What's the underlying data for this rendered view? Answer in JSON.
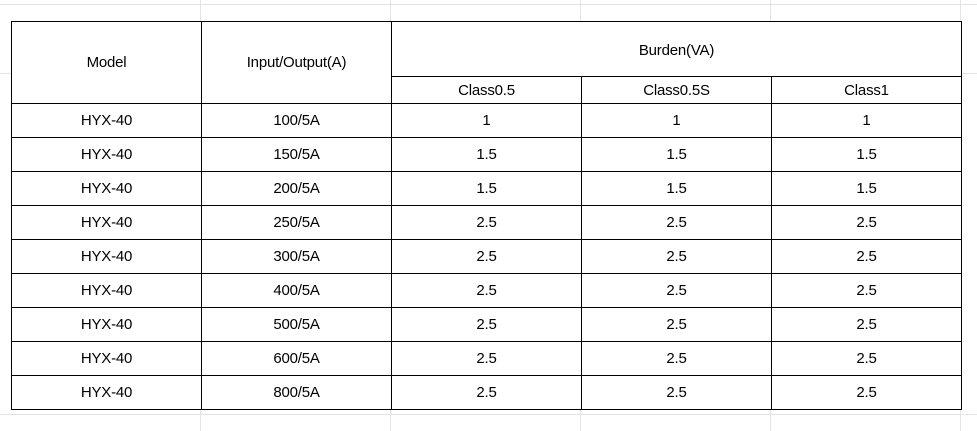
{
  "table": {
    "headers": {
      "model": "Model",
      "input_output": "Input/Output(A)",
      "burden": "Burden(VA)",
      "classes": [
        "Class0.5",
        "Class0.5S",
        "Class1"
      ]
    },
    "rows": [
      {
        "model": "HYX-40",
        "io": "100/5A",
        "c05": "1",
        "c05s": "1",
        "c1": "1"
      },
      {
        "model": "HYX-40",
        "io": "150/5A",
        "c05": "1.5",
        "c05s": "1.5",
        "c1": "1.5"
      },
      {
        "model": "HYX-40",
        "io": "200/5A",
        "c05": "1.5",
        "c05s": "1.5",
        "c1": "1.5"
      },
      {
        "model": "HYX-40",
        "io": "250/5A",
        "c05": "2.5",
        "c05s": "2.5",
        "c1": "2.5"
      },
      {
        "model": "HYX-40",
        "io": "300/5A",
        "c05": "2.5",
        "c05s": "2.5",
        "c1": "2.5"
      },
      {
        "model": "HYX-40",
        "io": "400/5A",
        "c05": "2.5",
        "c05s": "2.5",
        "c1": "2.5"
      },
      {
        "model": "HYX-40",
        "io": "500/5A",
        "c05": "2.5",
        "c05s": "2.5",
        "c1": "2.5"
      },
      {
        "model": "HYX-40",
        "io": "600/5A",
        "c05": "2.5",
        "c05s": "2.5",
        "c1": "2.5"
      },
      {
        "model": "HYX-40",
        "io": "800/5A",
        "c05": "2.5",
        "c05s": "2.5",
        "c1": "2.5"
      }
    ]
  },
  "colors": {
    "border": "#000000",
    "gridline": "#e3e3e3",
    "background": "#ffffff"
  }
}
